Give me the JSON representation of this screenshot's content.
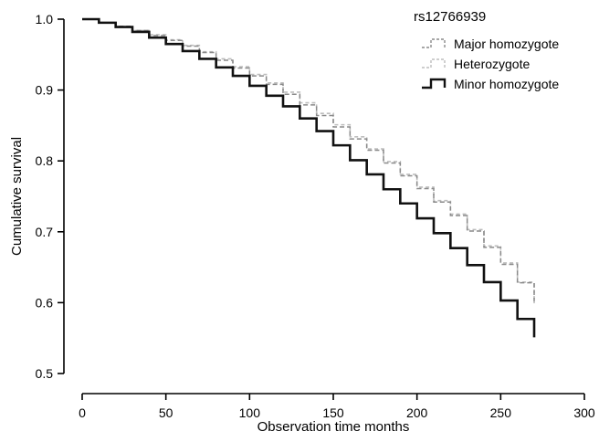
{
  "chart_data": {
    "type": "line",
    "title": "",
    "xlabel": "Observation time months",
    "ylabel": "Cumulative survival",
    "xlim": [
      0,
      300
    ],
    "ylim": [
      0.5,
      1.0
    ],
    "x_ticks": [
      0,
      50,
      100,
      150,
      200,
      250,
      300
    ],
    "x_tick_labels": [
      "0",
      "50",
      "100",
      "150",
      "200",
      "250",
      "300"
    ],
    "y_ticks": [
      0.5,
      0.6,
      0.7,
      0.8,
      0.9,
      1.0
    ],
    "y_tick_labels": [
      "0.5",
      "0.6",
      "0.7",
      "0.8",
      "0.9",
      "1.0"
    ],
    "grid": false,
    "legend": {
      "title": "rs12766939",
      "placement": "top-right",
      "entries": [
        "Major homozygote",
        "Heterozygote",
        "Minor homozygote"
      ]
    },
    "series": [
      {
        "name": "Major homozygote",
        "color": "#8a8a8a",
        "style": "dashed",
        "x": [
          0,
          10,
          20,
          30,
          40,
          50,
          60,
          70,
          80,
          90,
          100,
          110,
          120,
          130,
          140,
          150,
          160,
          170,
          180,
          190,
          200,
          210,
          220,
          230,
          240,
          250,
          260,
          270
        ],
        "y": [
          1.0,
          0.995,
          0.99,
          0.984,
          0.977,
          0.97,
          0.962,
          0.953,
          0.942,
          0.931,
          0.92,
          0.908,
          0.894,
          0.879,
          0.864,
          0.848,
          0.831,
          0.815,
          0.797,
          0.779,
          0.761,
          0.742,
          0.723,
          0.701,
          0.678,
          0.654,
          0.628,
          0.601
        ]
      },
      {
        "name": "Heterozygote",
        "color": "#bdbdbd",
        "style": "dashed",
        "x": [
          0,
          10,
          20,
          30,
          40,
          50,
          60,
          70,
          80,
          90,
          100,
          110,
          120,
          130,
          140,
          150,
          160,
          170,
          180,
          190,
          200,
          210,
          220,
          230,
          240,
          250,
          260,
          270
        ],
        "y": [
          1.0,
          0.995,
          0.99,
          0.984,
          0.978,
          0.971,
          0.963,
          0.954,
          0.944,
          0.933,
          0.922,
          0.91,
          0.897,
          0.882,
          0.867,
          0.851,
          0.834,
          0.817,
          0.799,
          0.781,
          0.763,
          0.744,
          0.725,
          0.703,
          0.68,
          0.656,
          0.629,
          0.599
        ]
      },
      {
        "name": "Minor homozygote",
        "color": "#111111",
        "style": "solid",
        "x": [
          0,
          10,
          20,
          30,
          40,
          50,
          60,
          70,
          80,
          90,
          100,
          110,
          120,
          130,
          140,
          150,
          160,
          170,
          180,
          190,
          200,
          210,
          220,
          230,
          240,
          250,
          260,
          270
        ],
        "y": [
          1.0,
          0.995,
          0.989,
          0.982,
          0.974,
          0.965,
          0.955,
          0.944,
          0.932,
          0.92,
          0.906,
          0.892,
          0.877,
          0.86,
          0.842,
          0.822,
          0.801,
          0.781,
          0.76,
          0.74,
          0.719,
          0.698,
          0.677,
          0.653,
          0.629,
          0.603,
          0.577,
          0.551
        ]
      }
    ]
  }
}
